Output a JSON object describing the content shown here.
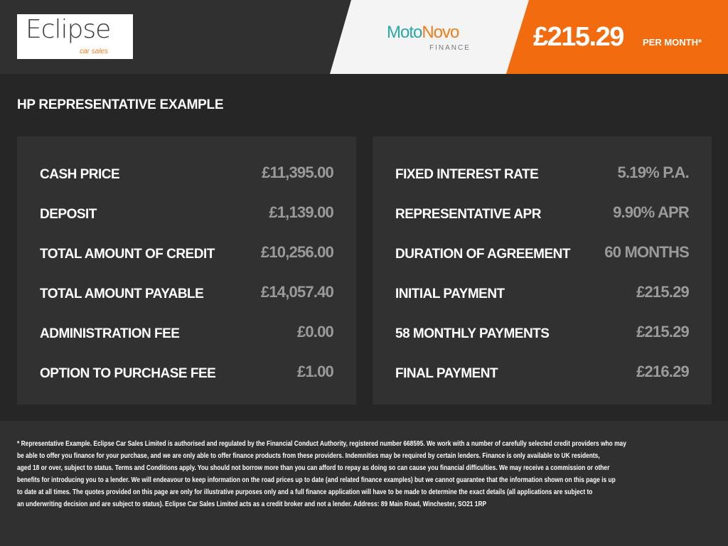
{
  "header": {
    "dealer_logo": "Eclipse car sales",
    "lender_logo_a": "Moto",
    "lender_logo_b": "Novo",
    "lender_logo_sub": "FINANCE",
    "monthly_price": "£215.29",
    "per_month": "PER MONTH*",
    "accent": "#f26b0e"
  },
  "title": "HP REPRESENTATIVE EXAMPLE",
  "left": [
    {
      "label": "CASH PRICE",
      "value": "£11,395.00"
    },
    {
      "label": "DEPOSIT",
      "value": "£1,139.00"
    },
    {
      "label": "TOTAL AMOUNT OF CREDIT",
      "value": "£10,256.00"
    },
    {
      "label": "TOTAL AMOUNT PAYABLE",
      "value": "£14,057.40"
    },
    {
      "label": "ADMINISTRATION FEE",
      "value": "£0.00"
    },
    {
      "label": "OPTION TO PURCHASE FEE",
      "value": "£1.00"
    }
  ],
  "right": [
    {
      "label": "FIXED INTEREST RATE",
      "value": "5.19% P.A."
    },
    {
      "label": "REPRESENTATIVE APR",
      "value": "9.90% APR"
    },
    {
      "label": "DURATION OF AGREEMENT",
      "value": "60 MONTHS"
    },
    {
      "label": "INITIAL PAYMENT",
      "value": "£215.29"
    },
    {
      "label": "58 MONTHLY PAYMENTS",
      "value": "£215.29"
    },
    {
      "label": "FINAL PAYMENT",
      "value": "£216.29"
    }
  ],
  "disclaimer": [
    "* Representative Example. Eclipse Car Sales Limited is authorised and regulated by the Financial Conduct Authority, registered number 668595. We work with a number of carefully selected credit providers who may",
    "be able to offer you finance for your purchase, and we are only able to offer finance products from these providers. Indemnities may be required by certain lenders. Finance is only available to UK residents,",
    "aged 18 or over, subject to status. Terms and Conditions apply. You should not borrow more than you can afford to repay as doing so can cause you financial difficulties. We may receive a commission or other",
    "benefits for introducing you to a lender. We will endeavour to keep information on the road prices up to date (and related finance examples) but we cannot guarantee that the information shown on this page is up",
    "to date at all times. The quotes provided on this page are only for illustrative purposes only and a full finance application will have to be made to determine the exact details (all applications are subject to",
    "an underwriting decision and are subject to status). Eclipse Car Sales Limited acts as a credit broker and not a lender. Address: 89 Main Road, Winchester, SO21 1RP"
  ]
}
